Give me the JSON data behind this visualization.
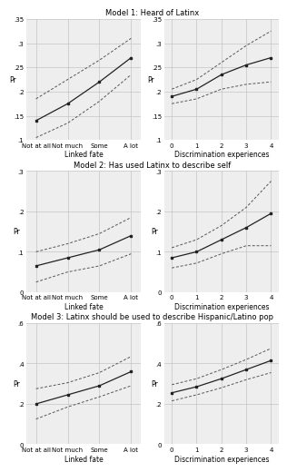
{
  "titles": [
    "Model 1: Heard of Latinx",
    "Model 2: Has used Latinx to describe self",
    "Model 3: Latinx should be used to describe Hispanic/Latino pop"
  ],
  "ylabel": "Pr",
  "linked_fate_labels": [
    "Not at all",
    "Not much",
    "Some",
    "A lot"
  ],
  "linked_fate_xlabel": "Linked fate",
  "disc_xlabel": "Discrimination experiences",
  "disc_xticks": [
    0,
    1,
    2,
    3,
    4
  ],
  "models": [
    {
      "ylim": [
        0.1,
        0.35
      ],
      "yticks": [
        0.1,
        0.15,
        0.2,
        0.25,
        0.3,
        0.35
      ],
      "ytick_labels": [
        ".1",
        ".15",
        ".2",
        ".25",
        ".3",
        ".35"
      ],
      "lf_main": [
        0.14,
        0.175,
        0.22,
        0.27
      ],
      "lf_upper": [
        0.185,
        0.225,
        0.265,
        0.31
      ],
      "lf_lower": [
        0.105,
        0.135,
        0.18,
        0.235
      ],
      "disc_main": [
        0.19,
        0.205,
        0.235,
        0.255,
        0.27
      ],
      "disc_upper": [
        0.205,
        0.225,
        0.26,
        0.295,
        0.325
      ],
      "disc_lower": [
        0.175,
        0.185,
        0.205,
        0.215,
        0.22
      ]
    },
    {
      "ylim": [
        0.0,
        0.3
      ],
      "yticks": [
        0.0,
        0.1,
        0.2,
        0.3
      ],
      "ytick_labels": [
        "0",
        ".1",
        ".2",
        ".3"
      ],
      "lf_main": [
        0.065,
        0.085,
        0.105,
        0.14
      ],
      "lf_upper": [
        0.1,
        0.12,
        0.145,
        0.185
      ],
      "lf_lower": [
        0.025,
        0.05,
        0.065,
        0.095
      ],
      "disc_main": [
        0.085,
        0.1,
        0.13,
        0.16,
        0.195
      ],
      "disc_upper": [
        0.11,
        0.13,
        0.165,
        0.21,
        0.275
      ],
      "disc_lower": [
        0.06,
        0.072,
        0.095,
        0.115,
        0.115
      ]
    },
    {
      "ylim": [
        0.0,
        0.6
      ],
      "yticks": [
        0.0,
        0.2,
        0.4,
        0.6
      ],
      "ytick_labels": [
        "0",
        ".2",
        ".4",
        ".6"
      ],
      "lf_main": [
        0.2,
        0.245,
        0.29,
        0.36
      ],
      "lf_upper": [
        0.275,
        0.305,
        0.355,
        0.435
      ],
      "lf_lower": [
        0.125,
        0.185,
        0.235,
        0.29
      ],
      "disc_main": [
        0.255,
        0.285,
        0.325,
        0.37,
        0.415
      ],
      "disc_upper": [
        0.295,
        0.325,
        0.37,
        0.42,
        0.475
      ],
      "disc_lower": [
        0.215,
        0.245,
        0.28,
        0.32,
        0.355
      ]
    }
  ],
  "line_color": "#222222",
  "ci_color": "#555555",
  "marker": "s",
  "markersize": 2.0,
  "linewidth": 0.9,
  "ci_linewidth": 0.7,
  "grid_color": "#bbbbbb",
  "panel_facecolor": "#eeeeee",
  "fig_facecolor": "#ffffff",
  "title_fontsize": 6.0,
  "label_fontsize": 5.5,
  "tick_fontsize": 5.0
}
